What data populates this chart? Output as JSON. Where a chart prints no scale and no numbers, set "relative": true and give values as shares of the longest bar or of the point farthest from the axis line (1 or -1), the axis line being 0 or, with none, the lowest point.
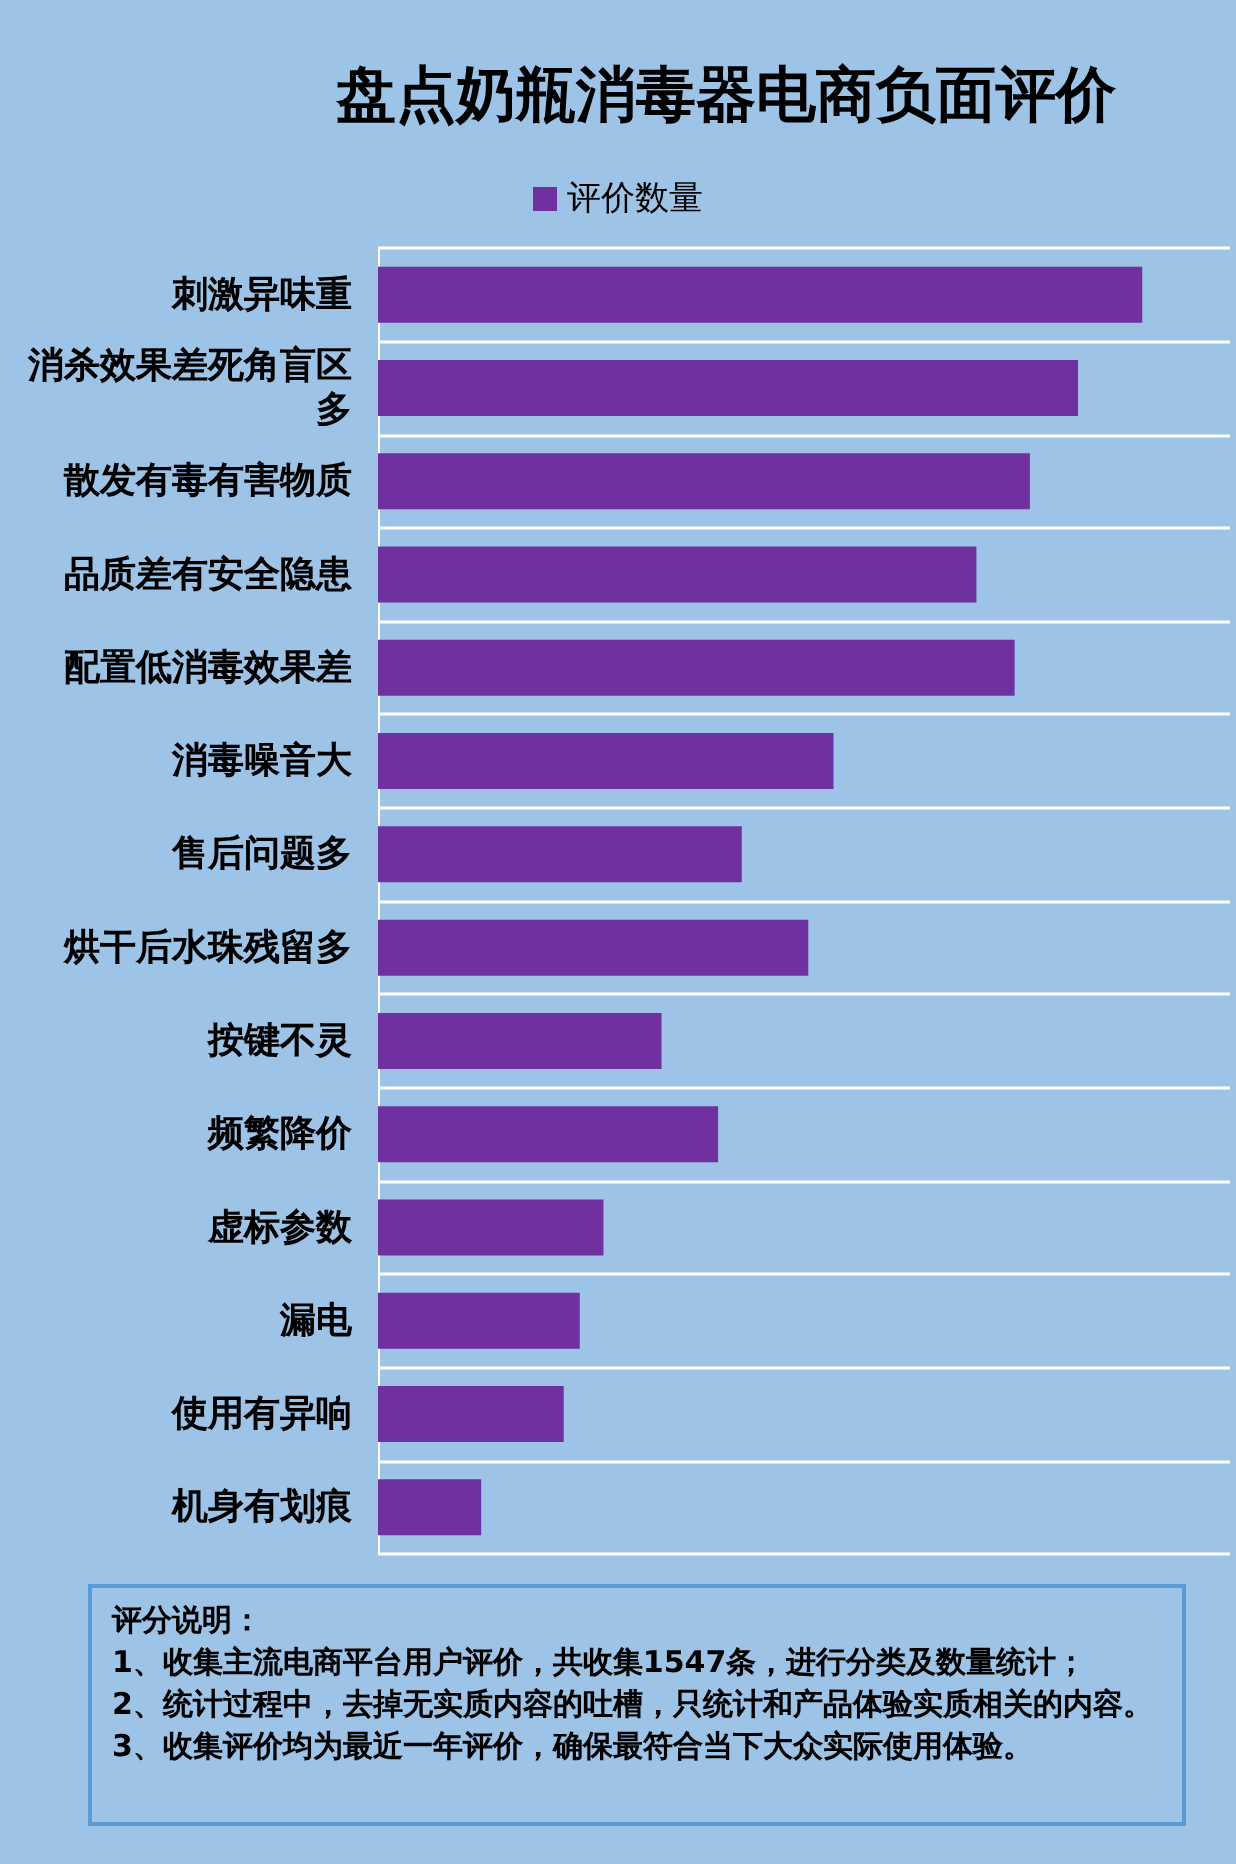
{
  "chart_data": {
    "type": "bar",
    "orientation": "horizontal",
    "relative": true,
    "title": "盘点奶瓶消毒器电商负面评价",
    "categories": [
      "刺激异味重",
      "消杀效果差死角盲区多",
      "散发有毒有害物质",
      "品质差有安全隐患",
      "配置低消毒效果差",
      "消毒噪音大",
      "售后问题多",
      "烘干后水珠残留多",
      "按键不灵",
      "频繁降价",
      "虚标参数",
      "漏电",
      "使用有异响",
      "机身有划痕"
    ],
    "series": [
      {
        "name": "评价数量",
        "color": "#7030a0",
        "values": [
          1,
          0.916,
          0.853,
          0.783,
          0.833,
          0.596,
          0.476,
          0.563,
          0.371,
          0.445,
          0.295,
          0.264,
          0.243,
          0.135
        ]
      }
    ],
    "grid": "y",
    "legend": "top",
    "annotations": [
      "评分说明：",
      "1、收集主流电商平台用户评价，共收集1547条，进行分类及数量统计；",
      "2、统计过程中，去掉无实质内容的吐槽，只统计和产品体验实质相关的内容。",
      "3、收集评价均为最近一年评价，确保最符合当下大众实际使用体验。"
    ]
  }
}
